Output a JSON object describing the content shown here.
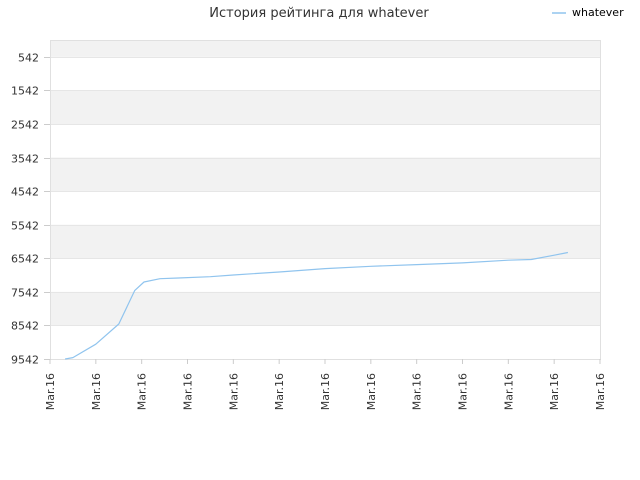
{
  "chart_data": {
    "type": "line",
    "title": "История рейтинга для whatever",
    "xlabel": "",
    "ylabel": "",
    "legend": {
      "position": "top-right",
      "entries": [
        "whatever"
      ]
    },
    "y_axis": {
      "reversed": true,
      "ticks": [
        542,
        1542,
        2542,
        3542,
        4542,
        5542,
        6542,
        7542,
        8542,
        9542
      ],
      "range": [
        42,
        9542
      ]
    },
    "x_axis": {
      "ticks": [
        "Mar.16",
        "Mar.16",
        "Mar.16",
        "Mar.16",
        "Mar.16",
        "Mar.16",
        "Mar.16",
        "Mar.16",
        "Mar.16",
        "Mar.16",
        "Mar.16",
        "Mar.16",
        "Mar.16"
      ],
      "range": [
        0,
        12
      ]
    },
    "grid": true,
    "colors": {
      "series": "#90c4ee",
      "band": "#f2f2f2",
      "grid": "#e6e6e6"
    },
    "series": [
      {
        "name": "whatever",
        "x": [
          0.33,
          0.5,
          1.0,
          1.5,
          1.85,
          2.05,
          2.4,
          2.8,
          3.5,
          4.0,
          5.0,
          6.0,
          7.0,
          8.0,
          9.0,
          10.0,
          10.5,
          11.0,
          11.3
        ],
        "y": [
          9542,
          9500,
          9100,
          8500,
          7500,
          7250,
          7150,
          7130,
          7090,
          7040,
          6950,
          6850,
          6780,
          6730,
          6680,
          6600,
          6580,
          6450,
          6370
        ]
      }
    ]
  }
}
